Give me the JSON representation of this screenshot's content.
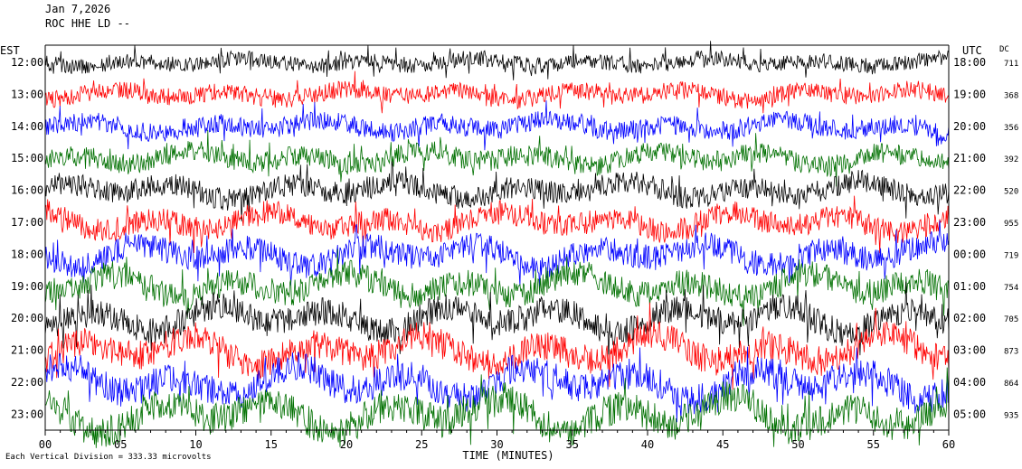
{
  "header": {
    "date": "Jan 7,2026",
    "station": "ROC HHE LD --"
  },
  "footer": {
    "note": "Each Vertical Division = 333.33 microvolts"
  },
  "chart_data": {
    "type": "line",
    "title": "",
    "left_axis_label": "EST",
    "right_axis_label": "UTC",
    "dc_label": "DC",
    "xlabel": "TIME (MINUTES)",
    "x_ticks": [
      "00",
      "05",
      "10",
      "15",
      "20",
      "25",
      "30",
      "35",
      "40",
      "45",
      "50",
      "55",
      "60"
    ],
    "xlim": [
      0,
      60
    ],
    "trace_colors": [
      "#000000",
      "#ff0000",
      "#0000ff",
      "#007000"
    ],
    "rows": [
      {
        "est": "12:00",
        "utc": "18:00",
        "dc": "711"
      },
      {
        "est": "13:00",
        "utc": "19:00",
        "dc": "368"
      },
      {
        "est": "14:00",
        "utc": "20:00",
        "dc": "356"
      },
      {
        "est": "15:00",
        "utc": "21:00",
        "dc": "392"
      },
      {
        "est": "16:00",
        "utc": "22:00",
        "dc": "520"
      },
      {
        "est": "17:00",
        "utc": "23:00",
        "dc": "955"
      },
      {
        "est": "18:00",
        "utc": "00:00",
        "dc": "719"
      },
      {
        "est": "19:00",
        "utc": "01:00",
        "dc": "754"
      },
      {
        "est": "20:00",
        "utc": "02:00",
        "dc": "705"
      },
      {
        "est": "21:00",
        "utc": "03:00",
        "dc": "873"
      },
      {
        "est": "22:00",
        "utc": "04:00",
        "dc": "864"
      },
      {
        "est": "23:00",
        "utc": "05:00",
        "dc": "935"
      }
    ]
  }
}
